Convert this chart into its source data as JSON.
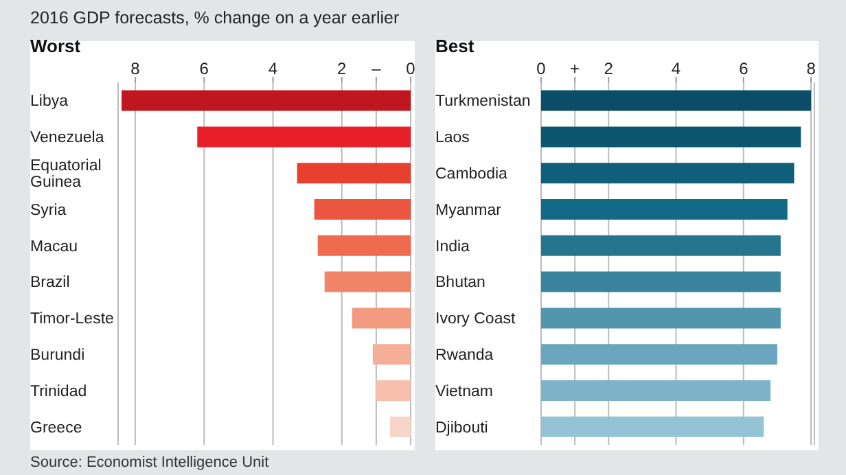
{
  "chart_data": [
    {
      "type": "bar",
      "orientation": "horizontal",
      "title": "Worst",
      "subtitle": "2016 GDP forecasts, % change on a year earlier",
      "categories": [
        "Libya",
        "Venezuela",
        "Equatorial Guinea",
        "Syria",
        "Macau",
        "Brazil",
        "Timor-Leste",
        "Burundi",
        "Trinidad",
        "Greece"
      ],
      "values": [
        -8.4,
        -6.2,
        -3.3,
        -2.8,
        -2.7,
        -2.5,
        -1.7,
        -1.1,
        -1.0,
        -0.6
      ],
      "colors": [
        "#c0161f",
        "#e8202a",
        "#e8402f",
        "#ec5540",
        "#ef6b50",
        "#f08466",
        "#f39b80",
        "#f5ae97",
        "#f7c0ad",
        "#f8d5c9"
      ],
      "xlim": [
        -8.5,
        0
      ],
      "xticks": [
        {
          "value": -8,
          "label": "8"
        },
        {
          "value": -6,
          "label": "6"
        },
        {
          "value": -4,
          "label": "4"
        },
        {
          "value": -2,
          "label": "2"
        },
        {
          "value": -1,
          "label": "–"
        },
        0
      ],
      "grid": "x",
      "annotations": [
        "Source: Economist Intelligence Unit"
      ]
    },
    {
      "type": "bar",
      "orientation": "horizontal",
      "title": "Best",
      "categories": [
        "Turkmenistan",
        "Laos",
        "Cambodia",
        "Myanmar",
        "India",
        "Bhutan",
        "Ivory Coast",
        "Rwanda",
        "Vietnam",
        "Djibouti"
      ],
      "values": [
        8.0,
        7.7,
        7.5,
        7.3,
        7.1,
        7.1,
        7.1,
        7.0,
        6.8,
        6.6
      ],
      "colors": [
        "#0b4d66",
        "#0d5670",
        "#0f5f7b",
        "#136a87",
        "#26758f",
        "#3a839c",
        "#5296ae",
        "#6aa6bd",
        "#7fb3c9",
        "#95c3d6"
      ],
      "xlim": [
        0,
        8.1
      ],
      "xticks": [
        0,
        {
          "value": 1,
          "label": "+"
        },
        2,
        4,
        6,
        8
      ],
      "grid": "x"
    }
  ]
}
